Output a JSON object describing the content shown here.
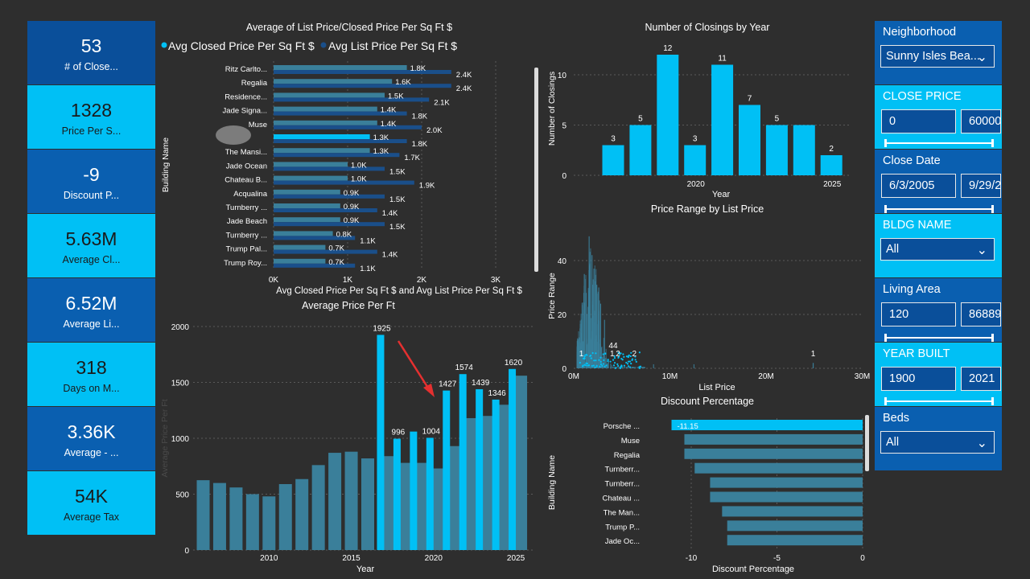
{
  "kpis": [
    {
      "value": "53",
      "label": "# of Close..."
    },
    {
      "value": "1328",
      "label": "Price Per S..."
    },
    {
      "value": "-9",
      "label": "Discount P..."
    },
    {
      "value": "5.63M",
      "label": "Average Cl..."
    },
    {
      "value": "6.52M",
      "label": "Average Li..."
    },
    {
      "value": "318",
      "label": "Days on M..."
    },
    {
      "value": "3.36K",
      "label": "Average - ..."
    },
    {
      "value": "54K",
      "label": "Average Tax"
    }
  ],
  "colors": {
    "bright": "#00c0f5",
    "muted": "#3a7f9a",
    "dark_blue": "#1a4f8a",
    "bg": "#2e2e2e"
  },
  "chart1": {
    "title": "Average of List Price/Closed Price Per Sq Ft $",
    "legend": [
      "Avg Closed Price Per Sq Ft $",
      "Avg List Price Per Sq Ft $"
    ],
    "xlabel": "Avg Closed Price Per Sq Ft $ and Avg List Price Per Sq Ft $",
    "ylabel": "Building Name",
    "xticks": [
      "0K",
      "1K",
      "2K",
      "3K"
    ]
  },
  "chart2": {
    "title": "Number of Closings by Year",
    "xlabel": "Year",
    "ylabel": "Number of Closings",
    "yticks": [
      "0",
      "5",
      "10"
    ],
    "xticks": [
      "2020",
      "2025"
    ]
  },
  "chart3": {
    "title": "Average Price Per Ft",
    "xlabel": "Year",
    "ylabel": "Average Price Per Ft",
    "yticks": [
      "0",
      "500",
      "1000",
      "1500",
      "2000"
    ],
    "xticks": [
      "2010",
      "2015",
      "2020",
      "2025"
    ]
  },
  "chart4": {
    "title": "Price Range by List Price",
    "xlabel": "List Price",
    "ylabel": "Price Range",
    "yticks": [
      "0",
      "20",
      "40"
    ],
    "xticks": [
      "0M",
      "10M",
      "20M",
      "30M"
    ],
    "labels": [
      "1",
      "44",
      "1",
      "2",
      "2",
      "1"
    ]
  },
  "chart5": {
    "title": "Discount Percentage",
    "xlabel": "Discount Percentage",
    "ylabel": "Building Name",
    "xticks": [
      "-10",
      "-5",
      "0"
    ]
  },
  "chart_data": [
    {
      "type": "bar",
      "orientation": "horizontal",
      "title": "Average of List Price/Closed Price Per Sq Ft $",
      "categories": [
        "Ritz Carlto...",
        "Regalia",
        "Residence...",
        "Jade Signa...",
        "Muse",
        "",
        "The Mansi...",
        "Jade Ocean",
        "Chateau B...",
        "Acqualina",
        "Turnberry ...",
        "Jade Beach",
        "Turnberry ...",
        "Trump Pal...",
        "Trump Roy..."
      ],
      "series": [
        {
          "name": "Avg Closed Price Per Sq Ft $",
          "values": [
            1.8,
            1.6,
            1.5,
            1.4,
            1.4,
            1.3,
            1.3,
            1.0,
            1.0,
            0.9,
            0.9,
            0.9,
            0.8,
            0.7,
            0.7
          ],
          "labels": [
            "1.8K",
            "1.6K",
            "1.5K",
            "1.4K",
            "1.4K",
            "1.3K",
            "1.3K",
            "1.0K",
            "1.0K",
            "0.9K",
            "0.9K",
            "0.9K",
            "0.8K",
            "0.7K",
            "0.7K"
          ]
        },
        {
          "name": "Avg List Price Per Sq Ft $",
          "values": [
            2.4,
            2.4,
            2.1,
            1.8,
            2.0,
            1.8,
            1.7,
            1.5,
            1.9,
            1.5,
            1.4,
            1.5,
            1.1,
            1.4,
            1.1
          ],
          "labels": [
            "2.4K",
            "2.4K",
            "2.1K",
            "1.8K",
            "2.0K",
            "1.8K",
            "1.7K",
            "1.5K",
            "1.9K",
            "1.5K",
            "1.4K",
            "1.5K",
            "1.1K",
            "1.4K",
            "1.1K"
          ]
        }
      ],
      "xlim": [
        0,
        3.3
      ],
      "highlighted_index": 5
    },
    {
      "type": "bar",
      "title": "Number of Closings by Year",
      "x": [
        2017,
        2018,
        2019,
        2020,
        2021,
        2022,
        2023,
        2024,
        2025
      ],
      "values": [
        3,
        5,
        12,
        3,
        11,
        7,
        5,
        5,
        2
      ],
      "labels": [
        "3",
        "5",
        "12",
        "3",
        "11",
        "7",
        "5",
        "",
        "2"
      ],
      "ylim": [
        0,
        13
      ]
    },
    {
      "type": "bar",
      "title": "Average Price Per Ft",
      "x": [
        2006,
        2007,
        2008,
        2009,
        2010,
        2011,
        2012,
        2013,
        2014,
        2015,
        2016,
        2017,
        2018,
        2019,
        2020,
        2021,
        2022,
        2023,
        2024,
        2025
      ],
      "series": [
        {
          "name": "muted",
          "values": [
            625,
            600,
            560,
            500,
            480,
            590,
            635,
            760,
            870,
            880,
            820,
            840,
            780,
            780,
            730,
            930,
            1180,
            1200,
            1300,
            1560
          ]
        },
        {
          "name": "bright",
          "values": [
            null,
            null,
            null,
            null,
            null,
            null,
            null,
            null,
            null,
            null,
            null,
            1925,
            996,
            1060,
            1004,
            1427,
            1574,
            1439,
            1346,
            1620
          ]
        }
      ],
      "labels": {
        "2017": "1925",
        "2018": "996",
        "2020": "1004",
        "2021": "1427",
        "2022": "1574",
        "2023": "1439",
        "2024": "1346",
        "2025": "1620"
      },
      "ylim": [
        0,
        2000
      ]
    },
    {
      "type": "scatter",
      "title": "Price Range by List Price",
      "xlim": [
        0,
        30
      ],
      "ylim": [
        0,
        50
      ],
      "labels": [
        "1",
        "44",
        "1",
        "2",
        "2",
        "1"
      ]
    },
    {
      "type": "bar",
      "orientation": "horizontal",
      "title": "Discount Percentage",
      "categories": [
        "Porsche ...",
        "Muse",
        "Regalia",
        "Turnberr...",
        "Turnberr...",
        "Chateau ...",
        "The Man...",
        "Trump P...",
        "Jade Oc..."
      ],
      "values": [
        -11.15,
        -10.4,
        -10.4,
        -9.8,
        -8.9,
        -8.9,
        -8.2,
        -7.9,
        -7.9
      ],
      "labels": [
        "-11.15",
        "",
        "",
        "",
        "",
        "",
        "",
        "",
        ""
      ],
      "xlim": [
        -11.5,
        0
      ]
    }
  ],
  "slicers": {
    "neighborhood": {
      "title": "Neighborhood",
      "value": "Sunny Isles Bea..."
    },
    "close_price": {
      "title": "CLOSE PRICE",
      "min": "0",
      "max": "60000"
    },
    "close_date": {
      "title": "Close Date",
      "min": "6/3/2005",
      "max": "9/29/2"
    },
    "bldg_name": {
      "title": "BLDG NAME",
      "value": "All"
    },
    "living_area": {
      "title": "Living Area",
      "min": "120",
      "max": "86889"
    },
    "year_built": {
      "title": "YEAR BUILT",
      "min": "1900",
      "max": "2021"
    },
    "beds": {
      "title": "Beds",
      "value": "All"
    }
  }
}
